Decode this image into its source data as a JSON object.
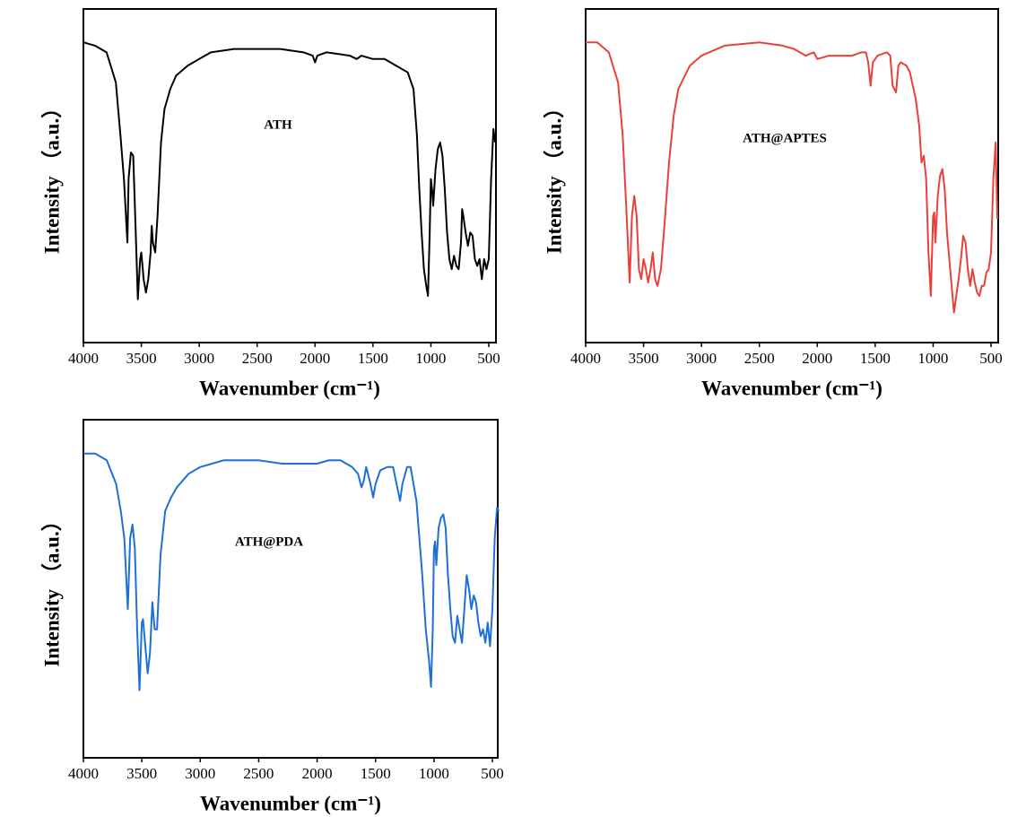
{
  "chart_data": [
    {
      "type": "line",
      "annotation": "ATH",
      "x_label": "Wavenumber (cm⁻¹)",
      "y_label": "Intensity （a.u.）",
      "color": "#000000",
      "xlim": [
        4000,
        438
      ],
      "ylim": [
        0,
        100
      ],
      "xticks": [
        4000,
        3500,
        3000,
        2500,
        2000,
        1500,
        1000,
        500
      ],
      "x": [
        4000,
        3900,
        3800,
        3720,
        3680,
        3650,
        3620,
        3610,
        3590,
        3570,
        3550,
        3530,
        3510,
        3500,
        3480,
        3460,
        3440,
        3420,
        3410,
        3400,
        3380,
        3360,
        3330,
        3300,
        3250,
        3200,
        3100,
        3000,
        2900,
        2700,
        2500,
        2300,
        2100,
        2020,
        2000,
        1980,
        1900,
        1700,
        1640,
        1600,
        1500,
        1400,
        1300,
        1200,
        1150,
        1120,
        1100,
        1080,
        1060,
        1040,
        1025,
        1010,
        1000,
        990,
        980,
        960,
        940,
        920,
        900,
        880,
        860,
        840,
        820,
        800,
        780,
        760,
        740,
        730,
        720,
        700,
        680,
        660,
        640,
        620,
        600,
        580,
        560,
        540,
        520,
        500,
        480,
        460,
        445
      ],
      "values": [
        90,
        89,
        87,
        78,
        62,
        49,
        30,
        49,
        57,
        56,
        35,
        13,
        25,
        27,
        19,
        15,
        19,
        27,
        35,
        30,
        27,
        38,
        60,
        70,
        76,
        80,
        83,
        85,
        87,
        88,
        88,
        88,
        87,
        86,
        84,
        86,
        87,
        86,
        85,
        86,
        85,
        85,
        83,
        81,
        76,
        62,
        46,
        33,
        22,
        17,
        14,
        33,
        49,
        46,
        41,
        52,
        58,
        60,
        56,
        46,
        33,
        25,
        22,
        26,
        23,
        22,
        30,
        40,
        38,
        33,
        29,
        33,
        32,
        25,
        23,
        25,
        19,
        25,
        22,
        25,
        49,
        64,
        60
      ]
    },
    {
      "type": "line",
      "annotation": "ATH@APTES",
      "x_label": "Wavenumber (cm⁻¹)",
      "y_label": "Intensity （a.u.）",
      "color": "#e8403a",
      "xlim": [
        4000,
        438
      ],
      "ylim": [
        0,
        100
      ],
      "xticks": [
        4000,
        3500,
        3000,
        2500,
        2000,
        1500,
        1000,
        500
      ],
      "x": [
        4000,
        3900,
        3800,
        3720,
        3680,
        3650,
        3620,
        3600,
        3580,
        3560,
        3540,
        3520,
        3500,
        3480,
        3460,
        3440,
        3420,
        3400,
        3380,
        3350,
        3320,
        3280,
        3240,
        3200,
        3100,
        3000,
        2800,
        2500,
        2300,
        2200,
        2100,
        2030,
        2000,
        1900,
        1700,
        1620,
        1580,
        1560,
        1540,
        1520,
        1480,
        1400,
        1370,
        1350,
        1320,
        1300,
        1280,
        1230,
        1200,
        1150,
        1120,
        1100,
        1080,
        1060,
        1040,
        1020,
        1000,
        990,
        980,
        960,
        940,
        920,
        900,
        880,
        860,
        840,
        820,
        800,
        780,
        760,
        740,
        720,
        700,
        680,
        660,
        640,
        620,
        600,
        580,
        560,
        540,
        520,
        500,
        480,
        460,
        445
      ],
      "values": [
        90,
        90,
        87,
        78,
        62,
        41,
        18,
        38,
        44,
        38,
        22,
        19,
        25,
        22,
        18,
        22,
        27,
        19,
        17,
        22,
        35,
        54,
        68,
        76,
        83,
        86,
        89,
        90,
        89,
        88,
        86,
        87,
        85,
        86,
        86,
        87,
        87,
        84,
        77,
        84,
        86,
        87,
        86,
        77,
        75,
        83,
        84,
        83,
        81,
        73,
        65,
        54,
        56,
        49,
        27,
        14,
        38,
        39,
        30,
        44,
        50,
        52,
        46,
        33,
        25,
        17,
        9,
        14,
        19,
        25,
        32,
        30,
        22,
        17,
        22,
        18,
        15,
        14,
        17,
        17,
        21,
        22,
        27,
        49,
        60,
        37
      ]
    },
    {
      "type": "line",
      "annotation": "ATH@PDA",
      "x_label": "Wavenumber (cm⁻¹)",
      "y_label": "Intensity （a.u.）",
      "color": "#1f6fd8",
      "xlim": [
        4000,
        454
      ],
      "ylim": [
        0,
        100
      ],
      "xticks": [
        4000,
        3500,
        3000,
        2500,
        2000,
        1500,
        1000,
        500
      ],
      "x": [
        4000,
        3900,
        3800,
        3720,
        3680,
        3650,
        3620,
        3600,
        3580,
        3560,
        3540,
        3520,
        3500,
        3490,
        3470,
        3450,
        3430,
        3410,
        3390,
        3370,
        3340,
        3300,
        3250,
        3200,
        3100,
        3000,
        2800,
        2500,
        2300,
        2100,
        2000,
        1900,
        1800,
        1700,
        1650,
        1620,
        1600,
        1580,
        1550,
        1520,
        1500,
        1460,
        1400,
        1350,
        1320,
        1290,
        1270,
        1230,
        1200,
        1150,
        1100,
        1070,
        1040,
        1025,
        1010,
        1000,
        990,
        980,
        960,
        940,
        920,
        900,
        880,
        860,
        840,
        820,
        800,
        780,
        760,
        740,
        720,
        700,
        680,
        660,
        640,
        620,
        600,
        580,
        560,
        540,
        520,
        500,
        480,
        460,
        445
      ],
      "values": [
        90,
        90,
        88,
        81,
        73,
        65,
        44,
        65,
        69,
        62,
        38,
        20,
        40,
        41,
        33,
        25,
        31,
        46,
        38,
        38,
        60,
        73,
        77,
        80,
        84,
        86,
        88,
        88,
        87,
        87,
        87,
        88,
        88,
        86,
        84,
        80,
        82,
        86,
        82,
        77,
        81,
        85,
        86,
        86,
        81,
        76,
        81,
        86,
        86,
        76,
        54,
        38,
        28,
        21,
        38,
        62,
        64,
        57,
        68,
        71,
        72,
        68,
        54,
        44,
        36,
        34,
        42,
        38,
        34,
        44,
        54,
        50,
        44,
        48,
        46,
        40,
        36,
        38,
        34,
        40,
        33,
        44,
        65,
        74,
        73
      ]
    }
  ]
}
